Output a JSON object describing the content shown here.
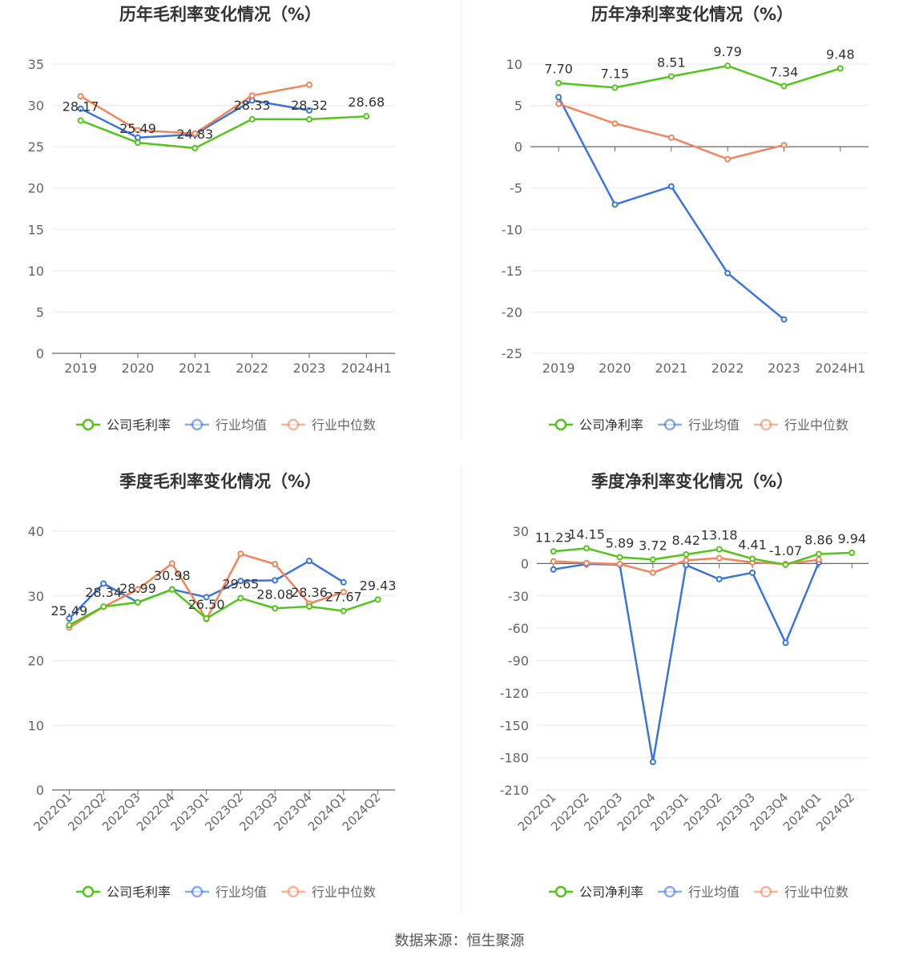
{
  "colors": {
    "company": "#52c41a",
    "industry_avg": "#3b74dd",
    "industry_median": "#f0845a",
    "axis": "#666666",
    "grid": "#e6e9f0",
    "text": "#333333",
    "divider": "#e8e8e8"
  },
  "source": "数据来源：恒生聚源",
  "chart_data": [
    {
      "type": "line",
      "title": "历年毛利率变化情况（%）",
      "categories": [
        "2019",
        "2020",
        "2021",
        "2022",
        "2023",
        "2024H1"
      ],
      "ylim": [
        0,
        35
      ],
      "yticks": [
        0,
        5,
        10,
        15,
        20,
        25,
        30,
        35
      ],
      "grid": true,
      "legend": "bottom",
      "series": [
        {
          "name": "公司毛利率",
          "values": [
            28.17,
            25.49,
            24.83,
            28.33,
            28.32,
            28.68
          ],
          "labels": true
        },
        {
          "name": "行业均值",
          "values": [
            29.6,
            26.1,
            26.5,
            30.6,
            29.4,
            null
          ]
        },
        {
          "name": "行业中位数",
          "values": [
            31.1,
            27.0,
            26.6,
            31.2,
            32.5,
            null
          ]
        }
      ]
    },
    {
      "type": "line",
      "title": "历年净利率变化情况（%）",
      "categories": [
        "2019",
        "2020",
        "2021",
        "2022",
        "2023",
        "2024H1"
      ],
      "ylim": [
        -25,
        10
      ],
      "yticks": [
        -25,
        -20,
        -15,
        -10,
        -5,
        0,
        5,
        10
      ],
      "grid": true,
      "legend": "bottom",
      "series": [
        {
          "name": "公司净利率",
          "values": [
            7.7,
            7.15,
            8.51,
            9.79,
            7.34,
            9.48
          ],
          "labels": true
        },
        {
          "name": "行业均值",
          "values": [
            6.0,
            -7.0,
            -4.8,
            -15.3,
            -20.9,
            null
          ]
        },
        {
          "name": "行业中位数",
          "values": [
            5.2,
            2.8,
            1.1,
            -1.5,
            0.2,
            null
          ]
        }
      ]
    },
    {
      "type": "line",
      "title": "季度毛利率变化情况（%）",
      "categories": [
        "2022Q1",
        "2022Q2",
        "2022Q3",
        "2022Q4",
        "2023Q1",
        "2023Q2",
        "2023Q3",
        "2023Q4",
        "2024Q1",
        "2024Q2"
      ],
      "ylim": [
        0,
        40
      ],
      "yticks": [
        0,
        10,
        20,
        30,
        40
      ],
      "grid": true,
      "legend": "bottom",
      "series": [
        {
          "name": "公司毛利率",
          "values": [
            25.49,
            28.34,
            28.99,
            30.98,
            26.5,
            29.65,
            28.08,
            28.36,
            27.67,
            29.43
          ],
          "labels": true
        },
        {
          "name": "行业均值",
          "values": [
            26.5,
            31.9,
            29.0,
            31.0,
            29.8,
            32.3,
            32.4,
            35.4,
            32.1,
            null
          ]
        },
        {
          "name": "行业中位数",
          "values": [
            25.1,
            28.3,
            31.0,
            35.0,
            26.4,
            36.5,
            34.9,
            28.8,
            30.6,
            null
          ]
        }
      ]
    },
    {
      "type": "line",
      "title": "季度净利率变化情况（%）",
      "categories": [
        "2022Q1",
        "2022Q2",
        "2022Q3",
        "2022Q4",
        "2023Q1",
        "2023Q2",
        "2023Q3",
        "2023Q4",
        "2024Q1",
        "2024Q2"
      ],
      "ylim": [
        -210,
        30
      ],
      "yticks": [
        -210,
        -180,
        -150,
        -120,
        -90,
        -60,
        -30,
        0,
        30
      ],
      "grid": true,
      "legend": "bottom",
      "series": [
        {
          "name": "公司净利率",
          "values": [
            11.23,
            14.15,
            5.89,
            3.72,
            8.42,
            13.18,
            4.41,
            -1.07,
            8.86,
            9.94
          ],
          "labels": true
        },
        {
          "name": "行业均值",
          "values": [
            -5.5,
            -0.5,
            -1.0,
            -184.0,
            -1.5,
            -14.5,
            -8.5,
            -73.5,
            1.0,
            null
          ]
        },
        {
          "name": "行业中位数",
          "values": [
            2.0,
            0.5,
            -0.5,
            -8.5,
            3.0,
            5.0,
            1.0,
            -0.5,
            3.5,
            null
          ]
        }
      ]
    }
  ]
}
